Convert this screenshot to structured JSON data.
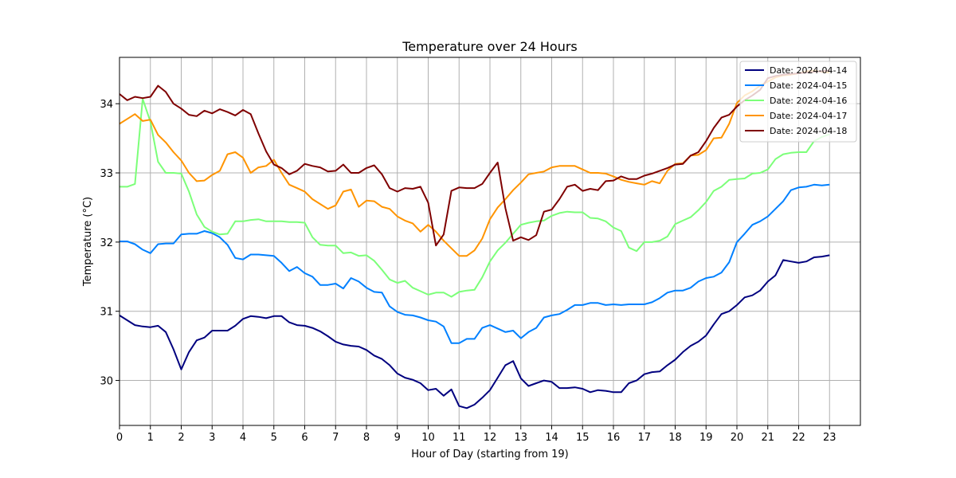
{
  "chart_data": {
    "type": "line",
    "title": "Temperature over 24 Hours",
    "xlabel": "Hour of Day (starting from 19)",
    "ylabel": "Temperature (°C)",
    "xlim": [
      0,
      24
    ],
    "ylim": [
      29.35,
      34.67
    ],
    "xticks": [
      0,
      1,
      2,
      3,
      4,
      5,
      6,
      7,
      8,
      9,
      10,
      11,
      12,
      13,
      14,
      15,
      16,
      17,
      18,
      19,
      20,
      21,
      22,
      23
    ],
    "yticks": [
      30,
      31,
      32,
      33,
      34
    ],
    "grid": true,
    "legend_position": "top-right",
    "x": [
      0,
      0.25,
      0.5,
      0.75,
      1,
      1.25,
      1.5,
      1.75,
      2,
      2.25,
      2.5,
      2.75,
      3,
      3.25,
      3.5,
      3.75,
      4,
      4.25,
      4.5,
      4.75,
      5,
      5.25,
      5.5,
      5.75,
      6,
      6.25,
      6.5,
      6.75,
      7,
      7.25,
      7.5,
      7.75,
      8,
      8.25,
      8.5,
      8.75,
      9,
      9.25,
      9.5,
      9.75,
      10,
      10.25,
      10.5,
      10.75,
      11,
      11.25,
      11.5,
      11.75,
      12,
      12.25,
      12.5,
      12.75,
      13,
      13.25,
      13.5,
      13.75,
      14,
      14.25,
      14.5,
      14.75,
      15,
      15.25,
      15.5,
      15.75,
      16,
      16.25,
      16.5,
      16.75,
      17,
      17.25,
      17.5,
      17.75,
      18,
      18.25,
      18.5,
      18.75,
      19,
      19.25,
      19.5,
      19.75,
      20,
      20.25,
      20.5,
      20.75,
      21,
      21.25,
      21.5,
      21.75,
      22,
      22.25,
      22.5,
      22.75,
      23
    ],
    "series": [
      {
        "name": "Date: 2024-04-14",
        "color": "#00007f",
        "values": [
          30.94,
          30.87,
          30.8,
          30.78,
          30.77,
          30.79,
          30.7,
          30.45,
          30.16,
          30.41,
          30.58,
          30.62,
          30.72,
          30.72,
          30.72,
          30.79,
          30.89,
          30.93,
          30.92,
          30.9,
          30.93,
          30.93,
          30.84,
          30.8,
          30.79,
          30.76,
          30.71,
          30.64,
          30.56,
          30.52,
          30.5,
          30.49,
          30.44,
          30.36,
          30.31,
          30.22,
          30.1,
          30.04,
          30.01,
          29.96,
          29.86,
          29.88,
          29.78,
          29.87,
          29.63,
          29.6,
          29.65,
          29.75,
          29.86,
          30.04,
          30.22,
          30.28,
          30.03,
          29.92,
          29.96,
          30.0,
          29.98,
          29.89,
          29.89,
          29.9,
          29.88,
          29.83,
          29.86,
          29.85,
          29.83,
          29.83,
          29.96,
          30.0,
          30.09,
          30.12,
          30.13,
          30.22,
          30.3,
          30.41,
          30.5,
          30.56,
          30.65,
          30.81,
          30.96,
          31.0,
          31.09,
          31.2,
          31.23,
          31.3,
          31.43,
          31.52,
          31.74,
          31.72,
          31.7,
          31.72,
          31.78,
          31.79,
          31.81
        ]
      },
      {
        "name": "Date: 2024-04-15",
        "color": "#0080ff",
        "values": [
          32.01,
          32.01,
          31.97,
          31.89,
          31.84,
          31.97,
          31.98,
          31.98,
          32.11,
          32.12,
          32.12,
          32.16,
          32.13,
          32.07,
          31.96,
          31.77,
          31.75,
          31.82,
          31.82,
          31.81,
          31.8,
          31.7,
          31.58,
          31.64,
          31.55,
          31.5,
          31.38,
          31.38,
          31.4,
          31.33,
          31.48,
          31.43,
          31.34,
          31.28,
          31.27,
          31.07,
          30.99,
          30.95,
          30.94,
          30.91,
          30.87,
          30.85,
          30.78,
          30.54,
          30.54,
          30.6,
          30.6,
          30.76,
          30.8,
          30.75,
          30.7,
          30.72,
          30.61,
          30.7,
          30.76,
          30.91,
          30.94,
          30.96,
          31.02,
          31.09,
          31.09,
          31.12,
          31.12,
          31.09,
          31.1,
          31.09,
          31.1,
          31.1,
          31.1,
          31.13,
          31.19,
          31.27,
          31.3,
          31.3,
          31.34,
          31.43,
          31.48,
          31.5,
          31.56,
          31.71,
          32.0,
          32.12,
          32.25,
          32.3,
          32.37,
          32.48,
          32.59,
          32.75,
          32.79,
          32.8,
          32.83,
          32.82,
          32.83
        ]
      },
      {
        "name": "Date: 2024-04-16",
        "color": "#7cff79",
        "values": [
          32.8,
          32.8,
          32.84,
          34.07,
          33.74,
          33.16,
          33.0,
          33.0,
          32.99,
          32.73,
          32.4,
          32.22,
          32.15,
          32.11,
          32.12,
          32.3,
          32.3,
          32.32,
          32.33,
          32.3,
          32.3,
          32.3,
          32.29,
          32.29,
          32.28,
          32.07,
          31.96,
          31.95,
          31.95,
          31.84,
          31.85,
          31.8,
          31.81,
          31.73,
          31.6,
          31.46,
          31.41,
          31.44,
          31.34,
          31.29,
          31.24,
          31.27,
          31.27,
          31.21,
          31.28,
          31.3,
          31.31,
          31.49,
          31.72,
          31.88,
          31.99,
          32.12,
          32.25,
          32.28,
          32.3,
          32.31,
          32.38,
          32.42,
          32.44,
          32.43,
          32.43,
          32.35,
          32.34,
          32.3,
          32.21,
          32.16,
          31.92,
          31.87,
          32.0,
          32.0,
          32.02,
          32.08,
          32.26,
          32.31,
          32.36,
          32.46,
          32.58,
          32.74,
          32.8,
          32.9,
          32.91,
          32.92,
          32.99,
          33.0,
          33.05,
          33.2,
          33.27,
          33.29,
          33.3,
          33.3,
          33.46,
          33.52,
          33.56
        ]
      },
      {
        "name": "Date: 2024-04-17",
        "color": "#ff9400",
        "values": [
          33.71,
          33.78,
          33.85,
          33.75,
          33.77,
          33.55,
          33.44,
          33.3,
          33.18,
          33.0,
          32.88,
          32.89,
          32.97,
          33.03,
          33.27,
          33.3,
          33.22,
          33.0,
          33.08,
          33.1,
          33.19,
          33.0,
          32.83,
          32.78,
          32.73,
          32.62,
          32.55,
          32.48,
          32.53,
          32.73,
          32.76,
          32.51,
          32.6,
          32.59,
          32.51,
          32.48,
          32.37,
          32.31,
          32.27,
          32.15,
          32.25,
          32.15,
          32.02,
          31.91,
          31.8,
          31.8,
          31.88,
          32.05,
          32.33,
          32.5,
          32.62,
          32.75,
          32.86,
          32.98,
          33.0,
          33.02,
          33.08,
          33.1,
          33.1,
          33.1,
          33.05,
          33.0,
          33.0,
          32.99,
          32.95,
          32.9,
          32.87,
          32.85,
          32.83,
          32.88,
          32.85,
          33.03,
          33.13,
          33.14,
          33.25,
          33.26,
          33.33,
          33.5,
          33.51,
          33.71,
          34.01,
          34.12,
          34.18,
          34.26,
          34.32,
          34.38,
          34.41,
          34.42,
          34.44,
          34.47,
          34.48,
          34.46,
          34.45
        ]
      },
      {
        "name": "Date: 2024-04-18",
        "color": "#7f0000",
        "values": [
          34.14,
          34.05,
          34.1,
          34.08,
          34.1,
          34.26,
          34.17,
          34.0,
          33.93,
          33.84,
          33.82,
          33.9,
          33.86,
          33.92,
          33.88,
          33.83,
          33.91,
          33.85,
          33.57,
          33.31,
          33.12,
          33.07,
          32.98,
          33.03,
          33.13,
          33.1,
          33.08,
          33.02,
          33.03,
          33.12,
          33.0,
          33.0,
          33.07,
          33.11,
          32.98,
          32.78,
          32.73,
          32.78,
          32.77,
          32.8,
          32.57,
          31.95,
          32.11,
          32.74,
          32.79,
          32.78,
          32.78,
          32.84,
          33.0,
          33.15,
          32.49,
          32.02,
          32.07,
          32.03,
          32.1,
          32.44,
          32.47,
          32.62,
          32.8,
          32.83,
          32.74,
          32.77,
          32.75,
          32.88,
          32.89,
          32.95,
          32.91,
          32.91,
          32.96,
          32.99,
          33.03,
          33.07,
          33.12,
          33.13,
          33.25,
          33.3,
          33.46,
          33.65,
          33.8,
          33.84,
          33.96,
          34.05,
          34.12,
          34.2,
          34.37,
          34.4,
          34.42,
          34.43,
          34.44,
          34.45,
          34.46,
          34.47,
          34.48
        ]
      }
    ]
  }
}
